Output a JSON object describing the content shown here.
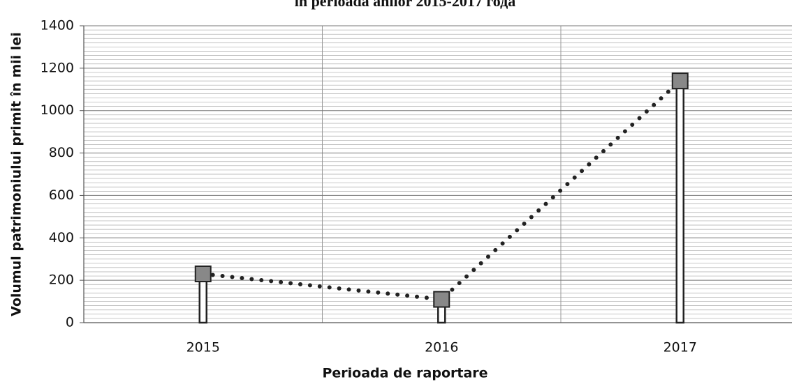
{
  "chart_data": {
    "type": "line",
    "title": "în perioada anilor 2015-2017 года",
    "x_label": "Perioada de raportare",
    "y_label": "Volumul patrimoniului primit în mii lei",
    "categories": [
      "2015",
      "2016",
      "2017"
    ],
    "series": [
      {
        "name": "Volumul patrimoniului primit",
        "color": "#222222",
        "values": [
          230,
          110,
          1140
        ]
      }
    ],
    "ylim": [
      0,
      1400
    ],
    "yticks": [
      0,
      200,
      400,
      600,
      800,
      1000,
      1200,
      1400
    ],
    "grid": true,
    "line_style": "dotted",
    "drop_lines": true
  }
}
